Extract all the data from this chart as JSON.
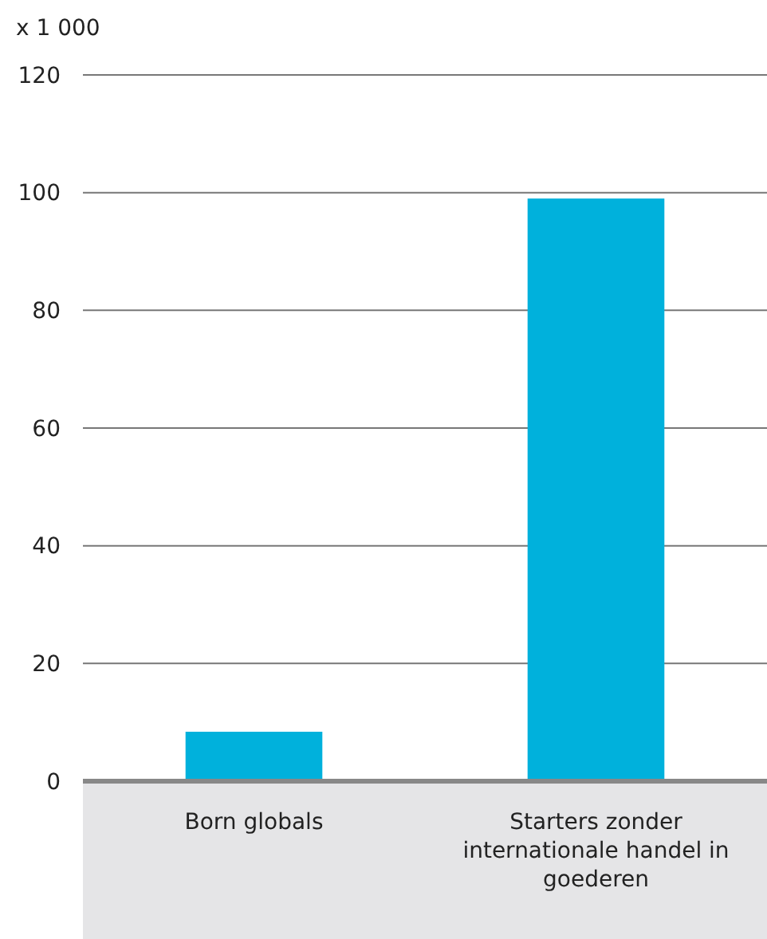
{
  "chart_data": {
    "type": "bar",
    "ylabel": "x 1 000",
    "categories": [
      "Born globals",
      "Starters zonder internationale handel in goederen"
    ],
    "values": [
      8.4,
      99
    ],
    "color": "#00b1dc",
    "ylim": [
      0,
      120
    ],
    "yticks": [
      0,
      20,
      40,
      60,
      80,
      100,
      120
    ],
    "grid": "y"
  }
}
